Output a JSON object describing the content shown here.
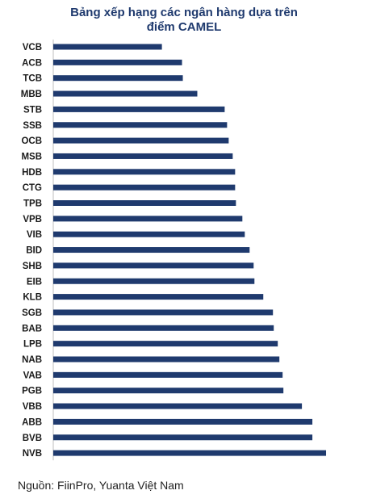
{
  "chart_data": {
    "type": "bar",
    "orientation": "horizontal",
    "title_lines": [
      "Bảng xếp hạng các ngân hàng dựa trên",
      "điểm CAMEL"
    ],
    "xlabel": "",
    "ylabel": "",
    "categories": [
      "VCB",
      "ACB",
      "TCB",
      "MBB",
      "STB",
      "SSB",
      "OCB",
      "MSB",
      "HDB",
      "CTG",
      "TPB",
      "VPB",
      "VIB",
      "BID",
      "SHB",
      "EIB",
      "KLB",
      "SGB",
      "BAB",
      "LPB",
      "NAB",
      "VAB",
      "PGB",
      "VBB",
      "ABB",
      "BVB",
      "NVB"
    ],
    "values": [
      200,
      225,
      226,
      244,
      278,
      281,
      283,
      288,
      291,
      291,
      292,
      300,
      303,
      309,
      314,
      315,
      326,
      338,
      339,
      344,
      346,
      350,
      351,
      374,
      387,
      387,
      404
    ],
    "xlim": [
      65,
      410
    ],
    "grid": false,
    "legend": "none",
    "bar_color": "#1f3a6e"
  },
  "source": "Nguồn: FiinPro, Yuanta Việt Nam"
}
